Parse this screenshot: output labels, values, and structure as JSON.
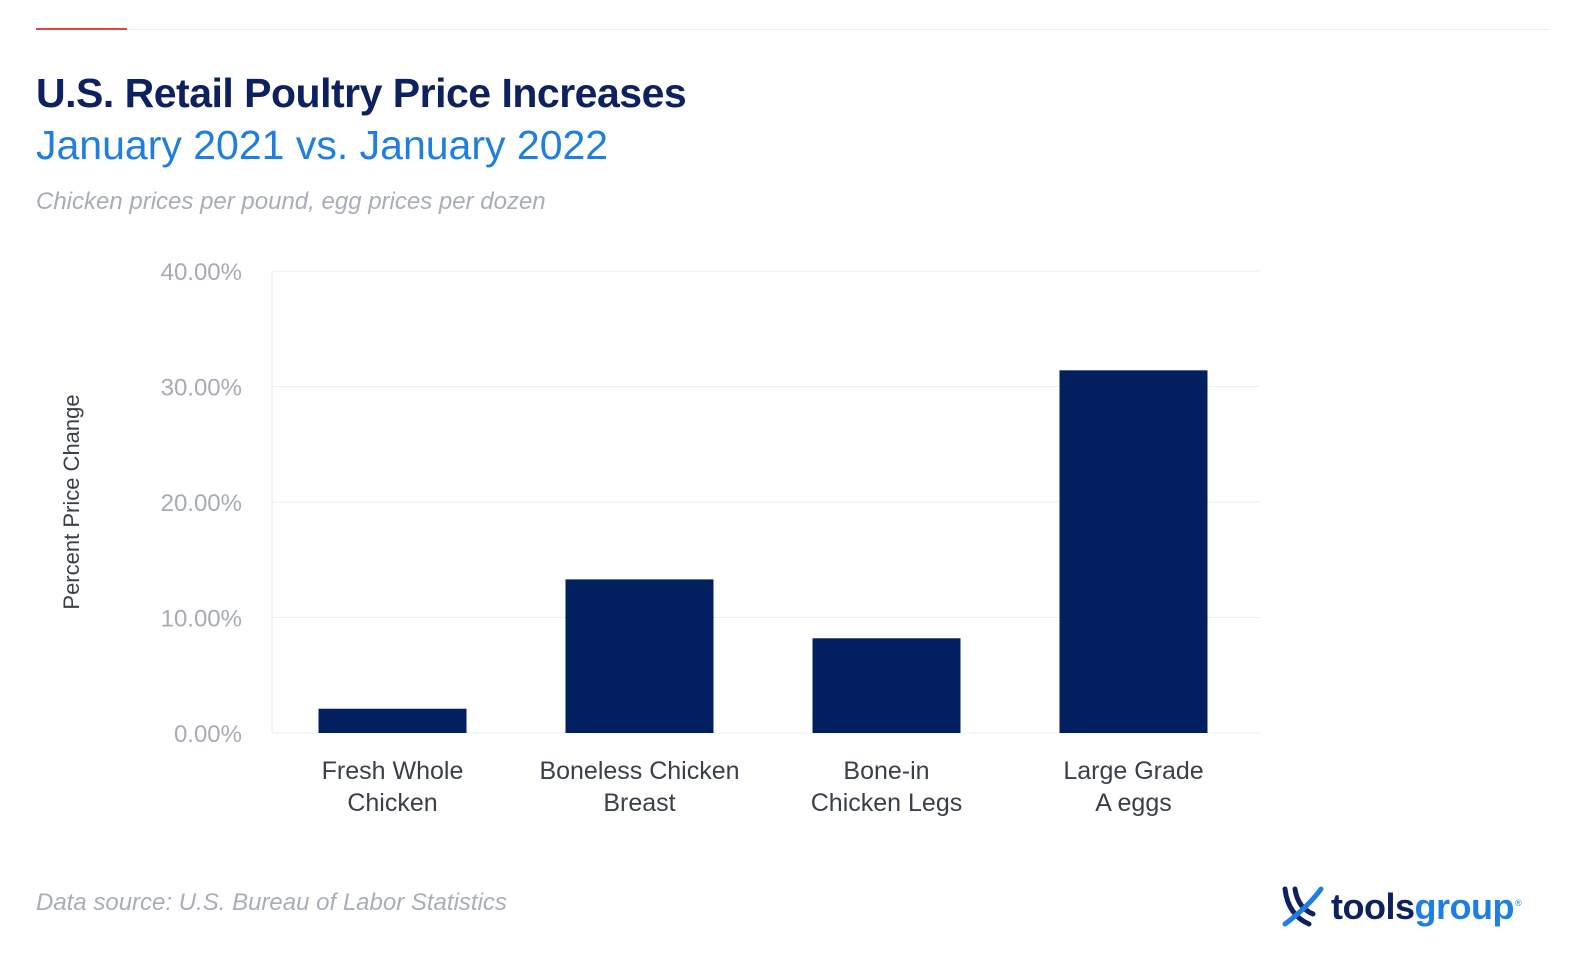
{
  "header": {
    "title": "U.S. Retail Poultry Price Increases",
    "subtitle": "January 2021 vs. January 2022",
    "note": "Chicken prices per pound, egg prices per dozen"
  },
  "footer": {
    "source": "Data source: U.S. Bureau of Labor Statistics",
    "logo_part1": "tools",
    "logo_part2": "group",
    "logo_reg": "®"
  },
  "colors": {
    "bar": "#02205f",
    "title": "#0d2160",
    "subtitle": "#1f7fe0",
    "accent": "#e8453c",
    "muted": "#a9adb8",
    "grid": "#eeeef2"
  },
  "chart_data": {
    "type": "bar",
    "categories": [
      [
        "Fresh Whole",
        "Chicken"
      ],
      [
        "Boneless Chicken",
        "Breast"
      ],
      [
        "Bone-in",
        "Chicken Legs"
      ],
      [
        "Large Grade",
        "A eggs"
      ]
    ],
    "values": [
      2.1,
      13.3,
      8.2,
      31.4
    ],
    "ylabel": "Percent Price Change",
    "yticks": [
      0,
      10,
      20,
      30,
      40
    ],
    "ytick_labels": [
      "0.00%",
      "10.00%",
      "20.00%",
      "30.00%",
      "40.00%"
    ],
    "ylim": [
      0,
      40
    ],
    "grid": true,
    "legend": "none"
  }
}
